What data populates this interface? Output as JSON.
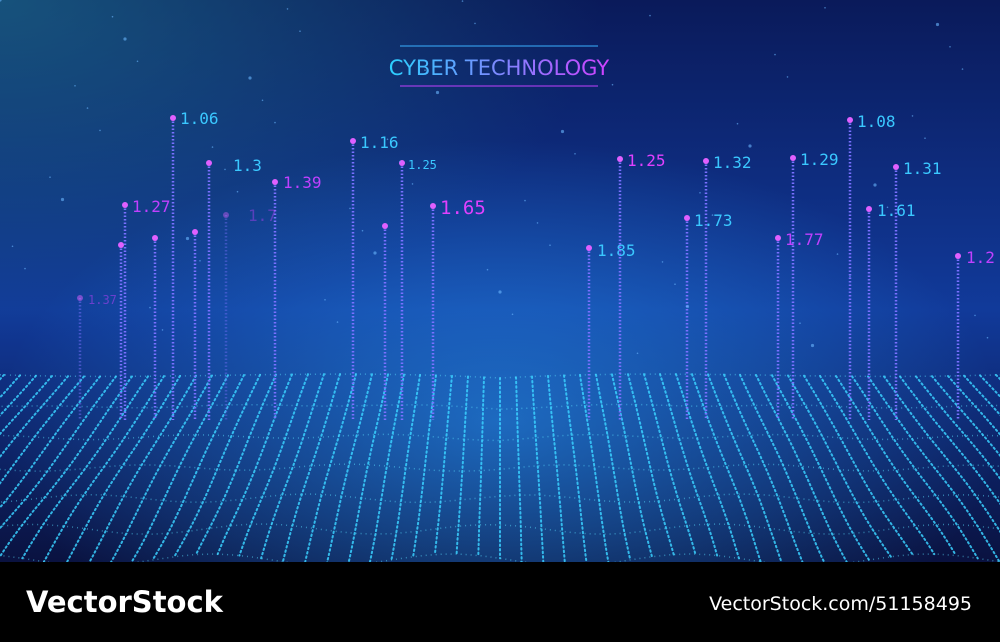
{
  "header": {
    "title": "CYBER TECHNOLOGY"
  },
  "labels": [
    "1.06",
    "1.3",
    "1.39",
    "1.27",
    "1.7",
    "1.16",
    "1.25",
    "1.65",
    "1.85",
    "1.25",
    "1.32",
    "1.73",
    "1.77",
    "1.29",
    "1.08",
    "1.31",
    "1.61",
    "1.2",
    "1.37"
  ],
  "footer": {
    "brand": "VectorStock",
    "id": "VectorStock.com/51158495"
  }
}
